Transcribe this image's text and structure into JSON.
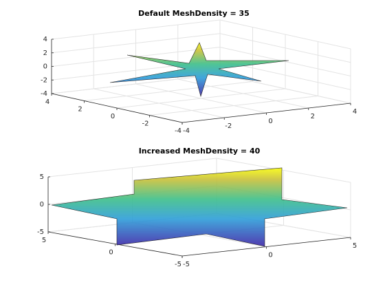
{
  "chart_data": [
    {
      "type": "surface",
      "title": "Default MeshDensity = 35",
      "xlim": [
        -4,
        4
      ],
      "xticks": [
        -4,
        -2,
        0,
        2,
        4
      ],
      "ylim": [
        -4,
        4
      ],
      "yticks": [
        -4,
        -2,
        0,
        2,
        4
      ],
      "zlim": [
        -4,
        4
      ],
      "zticks": [
        -4,
        -2,
        0,
        2,
        4
      ],
      "grid": true
    },
    {
      "type": "surface",
      "title": "Increased MeshDensity = 40",
      "xlim": [
        -5,
        5
      ],
      "xticks": [
        -5,
        0,
        5
      ],
      "ylim": [
        -5,
        5
      ],
      "yticks": [
        -5,
        0,
        5
      ],
      "zlim": [
        -5,
        5
      ],
      "zticks": [
        -5,
        0,
        5
      ],
      "grid": true
    }
  ]
}
